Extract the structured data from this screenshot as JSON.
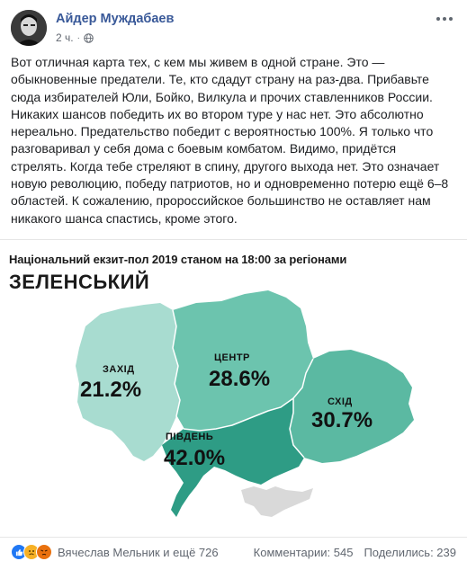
{
  "post": {
    "author": "Айдер Муждабаев",
    "time": "2 ч.",
    "separator": "·",
    "privacy_icon": "globe-icon",
    "more_icon": "more-horizontal-icon",
    "text": [
      "Вот отличная карта тех, с кем мы живем в одной стране. Это —",
      "обыкновенные предатели. Те, кто сдадут страну на раз-два. Прибавьте",
      "сюда избирателей Юли, Бойко, Вилкула и прочих ставленников России.",
      "Никаких шансов победить их во втором туре у нас нет. Это абсолютно",
      "нереально. Предательство победит с вероятностью 100%. Я только что",
      "разговаривал у себя дома с боевым комбатом. Видимо, придётся",
      "стрелять. Когда тебе стреляют в спину, другого выхода нет. Это означает",
      "новую революцию, победу патриотов, но и одновременно потерю ещё 6–8",
      "областей. К сожалению, пророссийское большинство не оставляет нам",
      "никакого шанса спастись, кроме этого."
    ]
  },
  "infographic": {
    "title": "Національний екзит-пол 2019 станом на 18:00 за регіонами",
    "candidate": "ЗЕЛЕНСЬКИЙ",
    "regions": [
      {
        "name": "ЗАХІД",
        "value": "21.2%",
        "color": "#a8dcd0"
      },
      {
        "name": "ЦЕНТР",
        "value": "28.6%",
        "color": "#6cc4ae"
      },
      {
        "name": "СХІД",
        "value": "30.7%",
        "color": "#5bb9a2"
      },
      {
        "name": "ПІВДЕНЬ",
        "value": "42.0%",
        "color": "#2e9c85"
      }
    ],
    "crimea_color": "#d9d9d9"
  },
  "footer": {
    "reaction_icons": [
      "like-icon",
      "sad-icon",
      "angry-icon"
    ],
    "reactions_text": "Вячеслав Мельник и ещё 726",
    "comments": "Комментарии: 545",
    "shares": "Поделились: 239"
  }
}
